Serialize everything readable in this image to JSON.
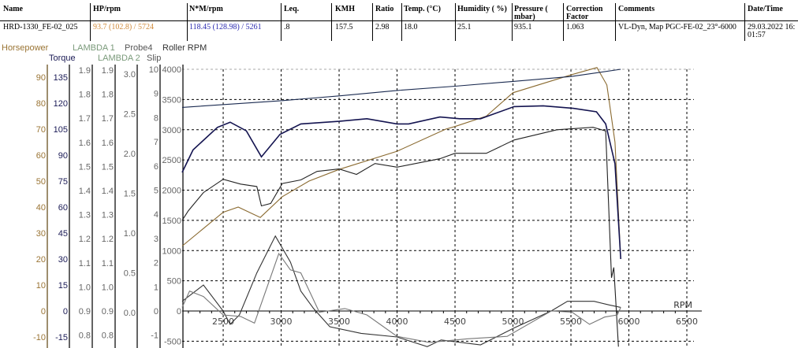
{
  "table": {
    "headers": [
      "Name",
      "HP/rpm",
      "N*M/rpm",
      "Leq.",
      "KMH",
      "Ratio",
      "Temp. (°C)",
      "Humidity ( %)",
      "Pressure ( mbar)",
      "Correction Factor",
      "Comments",
      "Date/Time"
    ],
    "row": [
      "HRD-1330_FE-02_025",
      "93.7 (102.8) / 5724",
      "118.45 (128.98) / 5261",
      ".8",
      "157.5",
      "2.98",
      "18.0",
      "25.1",
      "935.1",
      "1.063",
      "VL-Dyn,  Map PGC-FE-02_23°-6000",
      "29.03.2022 16:01:57"
    ],
    "hp_color": "#d08a3a",
    "torque_color": "#2a2ab0"
  },
  "chart_data": {
    "type": "line",
    "xlabel": "RPM",
    "xlim": [
      2146,
      6550
    ],
    "x_ticks": [
      "2500",
      "3000",
      "3500",
      "4000",
      "4500",
      "5000",
      "5500",
      "6000",
      "6500"
    ],
    "grid": true,
    "axes": [
      {
        "label": "Horsepower",
        "ticks": [
          "90",
          "80",
          "70",
          "60",
          "50",
          "40",
          "30",
          "20",
          "10",
          "0",
          "-10"
        ],
        "range": [
          -10,
          90
        ],
        "color": "#9a7434"
      },
      {
        "label": "Torque",
        "ticks": [
          "135",
          "120",
          "105",
          "90",
          "75",
          "60",
          "45",
          "30",
          "15",
          "0",
          "-15"
        ],
        "range": [
          -15,
          135
        ],
        "color": "#1a1a55"
      },
      {
        "label": "LAMBDA 1",
        "ticks": [
          "1.9",
          "1.8",
          "1.7",
          "1.6",
          "1.5",
          "1.4",
          "1.3",
          "1.2",
          "1.1",
          "1.0",
          "0.9",
          "0.8"
        ],
        "range": [
          0.8,
          1.9
        ],
        "color": "#7a9a7a"
      },
      {
        "label": "LAMBDA 2",
        "ticks": [
          "1.9",
          "1.8",
          "1.7",
          "1.6",
          "1.5",
          "1.4",
          "1.3",
          "1.2",
          "1.1",
          "1.0",
          "0.9",
          "0.8"
        ],
        "range": [
          0.8,
          1.9
        ],
        "color": "#7a9a7a"
      },
      {
        "label": "Probe4",
        "ticks": [
          "3.0",
          "2.5",
          "2.0",
          "1.5",
          "1.0",
          "0.5",
          "0.0"
        ],
        "range": [
          0,
          3
        ],
        "color": "#555555"
      },
      {
        "label": "Slip",
        "ticks": [
          "10",
          "9",
          "8",
          "7",
          "6",
          "5",
          "4",
          "3",
          "2",
          "1",
          "0",
          "-1"
        ],
        "range": [
          -1,
          10
        ],
        "color": "#555555"
      },
      {
        "label": "Roller RPM",
        "ticks": [
          "4000",
          "3500",
          "3000",
          "2500",
          "2000",
          "1500",
          "1000",
          "500",
          "0",
          "-500"
        ],
        "range": [
          -500,
          4000
        ],
        "color": "#333333"
      }
    ],
    "series": [
      {
        "name": "Horsepower",
        "axis": "Horsepower",
        "color": "#8a6a30",
        "points": [
          [
            2146,
            25
          ],
          [
            2500,
            38
          ],
          [
            2630,
            40
          ],
          [
            2820,
            36
          ],
          [
            3010,
            44
          ],
          [
            3240,
            50
          ],
          [
            3500,
            54.5
          ],
          [
            4000,
            61.5
          ],
          [
            4420,
            70
          ],
          [
            4500,
            71
          ],
          [
            4770,
            75
          ],
          [
            5000,
            84
          ],
          [
            5510,
            91
          ],
          [
            5724,
            93.7
          ],
          [
            5810,
            87
          ],
          [
            5880,
            65
          ],
          [
            5930,
            20
          ]
        ]
      },
      {
        "name": "Torque",
        "axis": "Torque",
        "color": "#141450",
        "points": [
          [
            2146,
            80
          ],
          [
            2240,
            93
          ],
          [
            2450,
            106
          ],
          [
            2560,
            109
          ],
          [
            2700,
            104
          ],
          [
            2830,
            89
          ],
          [
            2990,
            102
          ],
          [
            3170,
            108
          ],
          [
            3500,
            109.5
          ],
          [
            3740,
            111
          ],
          [
            4000,
            108
          ],
          [
            4100,
            108
          ],
          [
            4370,
            112
          ],
          [
            4540,
            111
          ],
          [
            4720,
            111
          ],
          [
            5010,
            118
          ],
          [
            5261,
            118.45
          ],
          [
            5520,
            117
          ],
          [
            5720,
            115
          ],
          [
            5800,
            108
          ],
          [
            5880,
            85
          ],
          [
            5930,
            30
          ]
        ]
      },
      {
        "axis": "Roller RPM",
        "color": "#1a2a50",
        "points": [
          [
            2146,
            3370
          ],
          [
            3000,
            3480
          ],
          [
            3500,
            3560
          ],
          [
            4000,
            3650
          ],
          [
            4500,
            3720
          ],
          [
            5000,
            3800
          ],
          [
            5500,
            3880
          ],
          [
            5930,
            4000
          ]
        ]
      },
      {
        "axis": "Roller RPM",
        "color": "#222222",
        "points": [
          [
            2146,
            1500
          ],
          [
            2200,
            1660
          ],
          [
            2330,
            1960
          ],
          [
            2500,
            2180
          ],
          [
            2650,
            2100
          ],
          [
            2790,
            2060
          ],
          [
            2830,
            1740
          ],
          [
            2910,
            1780
          ],
          [
            3010,
            2110
          ],
          [
            3170,
            2170
          ],
          [
            3310,
            2310
          ],
          [
            3500,
            2350
          ],
          [
            3650,
            2260
          ],
          [
            3810,
            2440
          ],
          [
            4000,
            2380
          ],
          [
            4370,
            2520
          ],
          [
            4500,
            2610
          ],
          [
            4770,
            2610
          ],
          [
            5010,
            2830
          ],
          [
            5380,
            3000
          ],
          [
            5690,
            3040
          ],
          [
            5800,
            2980
          ],
          [
            5850,
            550
          ],
          [
            5870,
            720
          ],
          [
            5910,
            -590
          ]
        ]
      },
      {
        "axis": "Roller RPM",
        "color": "#333333",
        "points": [
          [
            2146,
            160
          ],
          [
            2330,
            430
          ],
          [
            2500,
            0
          ],
          [
            2560,
            -220
          ],
          [
            2640,
            -65
          ],
          [
            2790,
            630
          ],
          [
            2950,
            1240
          ],
          [
            3080,
            810
          ],
          [
            3170,
            330
          ],
          [
            3280,
            40
          ],
          [
            3420,
            -260
          ],
          [
            3690,
            -370
          ],
          [
            4000,
            -430
          ],
          [
            4260,
            -590
          ],
          [
            4380,
            -480
          ],
          [
            4720,
            -560
          ],
          [
            5010,
            -280
          ],
          [
            5330,
            0
          ],
          [
            5470,
            160
          ],
          [
            5700,
            160
          ],
          [
            5830,
            100
          ],
          [
            5930,
            60
          ]
        ]
      },
      {
        "axis": "Roller RPM",
        "color": "#777777",
        "points": [
          [
            2146,
            60
          ],
          [
            2210,
            330
          ],
          [
            2330,
            240
          ],
          [
            2500,
            -65
          ],
          [
            2650,
            -90
          ],
          [
            2770,
            -200
          ],
          [
            2980,
            950
          ],
          [
            3080,
            680
          ],
          [
            3170,
            630
          ],
          [
            3330,
            -20
          ],
          [
            3550,
            40
          ],
          [
            3740,
            -65
          ],
          [
            4000,
            -420
          ],
          [
            4280,
            -520
          ],
          [
            4610,
            -460
          ],
          [
            4950,
            -420
          ],
          [
            5330,
            0
          ],
          [
            5510,
            -20
          ],
          [
            5660,
            -220
          ],
          [
            5790,
            -100
          ],
          [
            5900,
            -65
          ],
          [
            5930,
            60
          ]
        ]
      }
    ]
  }
}
